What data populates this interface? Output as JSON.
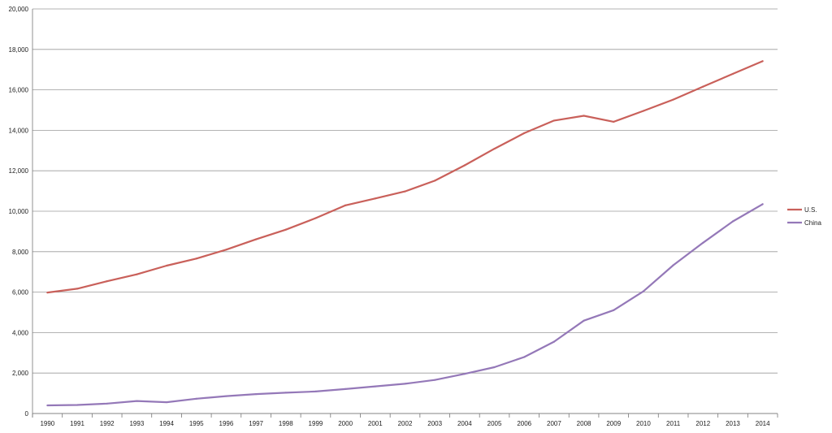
{
  "chart_data": {
    "type": "line",
    "title": "",
    "xlabel": "",
    "ylabel": "",
    "x": [
      1990,
      1991,
      1992,
      1993,
      1994,
      1995,
      1996,
      1997,
      1998,
      1999,
      2000,
      2001,
      2002,
      2003,
      2004,
      2005,
      2006,
      2007,
      2008,
      2009,
      2010,
      2011,
      2012,
      2013,
      2014
    ],
    "x_tick_labels": [
      "1990",
      "1991",
      "1992",
      "1993",
      "1994",
      "1995",
      "1996",
      "1997",
      "1998",
      "1999",
      "2000",
      "2001",
      "2002",
      "2003",
      "2004",
      "2005",
      "2006",
      "2007",
      "2008",
      "2009",
      "2010",
      "2011",
      "2012",
      "2013",
      "2014"
    ],
    "y_ticks": [
      0,
      2000,
      4000,
      6000,
      8000,
      10000,
      12000,
      14000,
      16000,
      18000,
      20000
    ],
    "y_tick_labels": [
      "0",
      "2,000",
      "4,000",
      "6,000",
      "8,000",
      "10,000",
      "12,000",
      "14,000",
      "16,000",
      "18,000",
      "20,000"
    ],
    "ylim": [
      0,
      20000
    ],
    "grid": "horizontal",
    "legend_position": "right",
    "series": [
      {
        "name": "U.S.",
        "color": "#c9605a",
        "values": [
          5980,
          6170,
          6540,
          6880,
          7310,
          7660,
          8100,
          8610,
          9090,
          9660,
          10290,
          10630,
          10980,
          11510,
          12270,
          13090,
          13860,
          14480,
          14720,
          14420,
          14960,
          15520,
          16160,
          16790,
          17420
        ]
      },
      {
        "name": "China",
        "color": "#9478b8",
        "values": [
          400,
          420,
          490,
          620,
          560,
          730,
          860,
          960,
          1030,
          1090,
          1210,
          1340,
          1470,
          1660,
          1960,
          2290,
          2790,
          3550,
          4590,
          5110,
          6040,
          7330,
          8440,
          9500,
          10350
        ]
      }
    ]
  }
}
